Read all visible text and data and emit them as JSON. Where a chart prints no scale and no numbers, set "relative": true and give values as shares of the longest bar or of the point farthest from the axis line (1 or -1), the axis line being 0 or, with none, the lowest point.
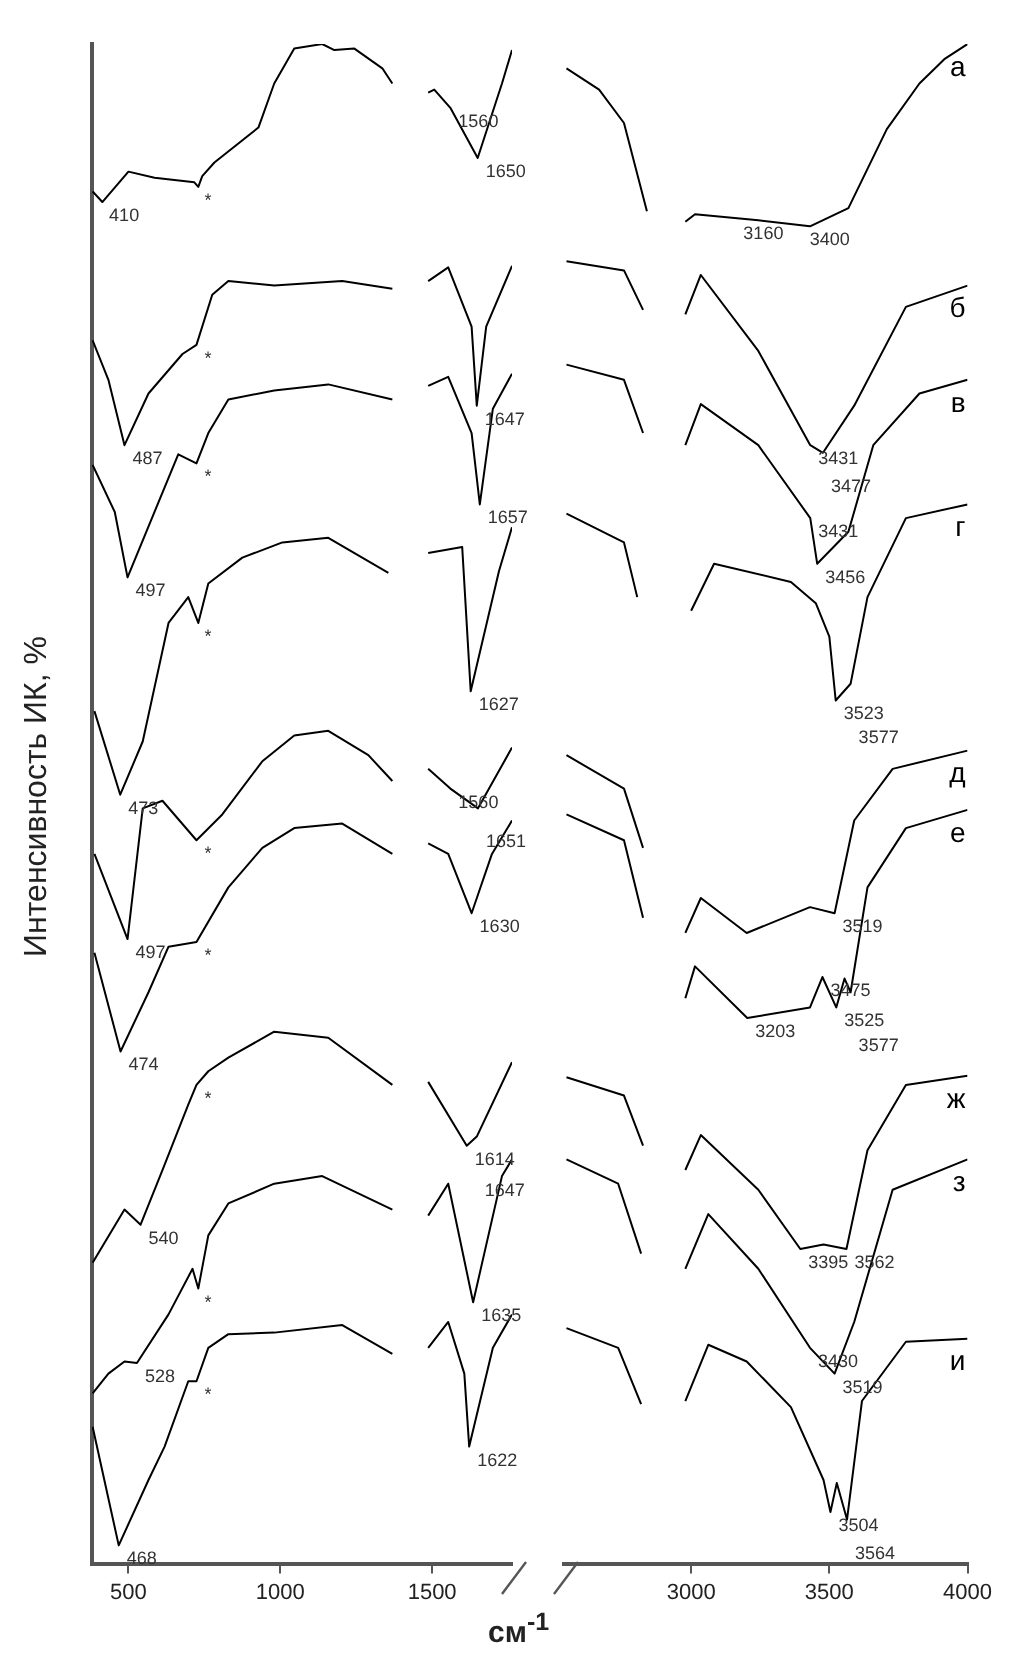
{
  "chart_data": [
    {
      "type": "line",
      "relative": true,
      "ylabel": "Интенсивность ИК, %",
      "xlim": [
        380,
        1763
      ],
      "xticks": [
        500,
        1000,
        1500
      ],
      "legend": false,
      "series": [
        {
          "color": "#000000",
          "x": [
            382,
            414,
            500,
            586,
            717,
            730,
            743,
            783,
            928,
            980,
            1046,
            1138,
            1178,
            1244,
            1336,
            1369,
            1430,
            1487,
            1507,
            1560,
            1650,
            1730,
            1763
          ],
          "values": [
            0.903,
            0.896,
            0.916,
            0.912,
            0.909,
            0.906,
            0.913,
            0.922,
            0.945,
            0.974,
            0.997,
            1.0,
            0.996,
            0.997,
            0.984,
            0.974,
            null,
            0.968,
            0.97,
            0.958,
            0.925,
            0.974,
            0.996
          ]
        },
        {
          "color": "#000000",
          "x": [
            382,
            434,
            487,
            566,
            678,
            724,
            776,
            829,
            980,
            1204,
            1369,
            1430,
            1487,
            1553,
            1630,
            1647,
            1678,
            1763
          ],
          "values": [
            0.805,
            0.779,
            0.736,
            0.77,
            0.796,
            0.802,
            0.835,
            0.844,
            0.841,
            0.844,
            0.839,
            null,
            0.844,
            0.853,
            0.814,
            0.762,
            0.814,
            0.854
          ]
        },
        {
          "color": "#000000",
          "x": [
            382,
            455,
            497,
            664,
            724,
            763,
            829,
            980,
            1158,
            1369,
            1430,
            1487,
            1553,
            1630,
            1657,
            1700,
            1763
          ],
          "values": [
            0.723,
            0.692,
            0.649,
            0.73,
            0.724,
            0.744,
            0.766,
            0.772,
            0.776,
            0.766,
            null,
            0.775,
            0.781,
            0.744,
            0.697,
            0.76,
            0.783
          ]
        },
        {
          "color": "#000000",
          "x": [
            388,
            473,
            547,
            632,
            697,
            730,
            763,
            875,
            1007,
            1158,
            1356,
            1430,
            1487,
            1599,
            1627,
            1720,
            1763
          ],
          "values": [
            0.561,
            0.506,
            0.541,
            0.619,
            0.636,
            0.619,
            0.645,
            0.662,
            0.672,
            0.675,
            0.652,
            null,
            0.665,
            0.669,
            0.574,
            0.653,
            0.682
          ]
        },
        {
          "color": "#000000",
          "x": [
            388,
            497,
            547,
            612,
            724,
            809,
            941,
            1046,
            1158,
            1290,
            1369,
            1430,
            1487,
            1560,
            1651,
            1763
          ],
          "values": [
            0.467,
            0.411,
            0.497,
            0.502,
            0.476,
            0.493,
            0.528,
            0.545,
            0.548,
            0.532,
            0.515,
            null,
            0.523,
            0.51,
            0.497,
            0.537
          ]
        },
        {
          "color": "#000000",
          "x": [
            388,
            474,
            566,
            632,
            724,
            829,
            941,
            1046,
            1204,
            1369,
            1430,
            1487,
            1553,
            1630,
            1697,
            1763
          ],
          "values": [
            0.402,
            0.337,
            0.376,
            0.406,
            0.409,
            0.445,
            0.471,
            0.484,
            0.487,
            0.467,
            null,
            0.474,
            0.467,
            0.428,
            0.467,
            0.489
          ]
        },
        {
          "color": "#000000",
          "x": [
            382,
            487,
            540,
            612,
            697,
            724,
            763,
            829,
            980,
            1158,
            1369,
            1430,
            1487,
            1614,
            1647,
            1763
          ],
          "values": [
            0.198,
            0.233,
            0.223,
            0.259,
            0.302,
            0.315,
            0.324,
            0.333,
            0.35,
            0.346,
            0.315,
            null,
            0.317,
            0.275,
            0.281,
            0.33
          ]
        },
        {
          "color": "#000000",
          "x": [
            382,
            434,
            487,
            528,
            632,
            711,
            730,
            763,
            829,
            980,
            1138,
            1369,
            1430,
            1487,
            1553,
            1635,
            1730,
            1763
          ],
          "values": [
            0.112,
            0.125,
            0.133,
            0.132,
            0.164,
            0.194,
            0.181,
            0.216,
            0.237,
            0.25,
            0.255,
            0.233,
            null,
            0.229,
            0.25,
            0.172,
            0.255,
            0.266
          ]
        },
        {
          "color": "#000000",
          "x": [
            382,
            468,
            566,
            619,
            697,
            724,
            763,
            829,
            980,
            1204,
            1369,
            1430,
            1487,
            1553,
            1606,
            1622,
            1700,
            1763
          ],
          "values": [
            0.09,
            0.012,
            0.055,
            0.077,
            0.12,
            0.12,
            0.142,
            0.151,
            0.152,
            0.157,
            0.138,
            null,
            0.142,
            0.159,
            0.125,
            0.077,
            0.142,
            0.164
          ]
        }
      ],
      "annotations": [
        {
          "text": "410",
          "x": 410,
          "y": 0.896
        },
        {
          "text": "1560",
          "x": 1560,
          "y": 0.958
        },
        {
          "text": "1650",
          "x": 1650,
          "y": 0.925
        },
        {
          "text": "487",
          "x": 487,
          "y": 0.736
        },
        {
          "text": "1647",
          "x": 1647,
          "y": 0.762
        },
        {
          "text": "497",
          "x": 497,
          "y": 0.649
        },
        {
          "text": "1657",
          "x": 1657,
          "y": 0.697
        },
        {
          "text": "473",
          "x": 473,
          "y": 0.506
        },
        {
          "text": "1627",
          "x": 1627,
          "y": 0.574
        },
        {
          "text": "497",
          "x": 497,
          "y": 0.411
        },
        {
          "text": "1560",
          "x": 1560,
          "y": 0.51
        },
        {
          "text": "1651",
          "x": 1651,
          "y": 0.497
        },
        {
          "text": "474",
          "x": 474,
          "y": 0.337
        },
        {
          "text": "1630",
          "x": 1630,
          "y": 0.428
        },
        {
          "text": "540",
          "x": 540,
          "y": 0.223
        },
        {
          "text": "1614",
          "x": 1614,
          "y": 0.275
        },
        {
          "text": "1647",
          "x": 1647,
          "y": 0.281
        },
        {
          "text": "528",
          "x": 528,
          "y": 0.132
        },
        {
          "text": "1635",
          "x": 1635,
          "y": 0.172
        },
        {
          "text": "468",
          "x": 468,
          "y": 0.012
        },
        {
          "text": "1622",
          "x": 1622,
          "y": 0.077
        },
        {
          "text": "*",
          "x": 724,
          "y": 0.906
        },
        {
          "text": "*",
          "x": 724,
          "y": 0.802
        },
        {
          "text": "*",
          "x": 724,
          "y": 0.724
        },
        {
          "text": "*",
          "x": 724,
          "y": 0.619
        },
        {
          "text": "*",
          "x": 724,
          "y": 0.476
        },
        {
          "text": "*",
          "x": 724,
          "y": 0.409
        },
        {
          "text": "*",
          "x": 724,
          "y": 0.315
        },
        {
          "text": "*",
          "x": 724,
          "y": 0.181
        },
        {
          "text": "*",
          "x": 724,
          "y": 0.12
        }
      ]
    },
    {
      "type": "line",
      "relative": true,
      "xlabel": "см$^{-1}$",
      "xlim": [
        2540,
        4000
      ],
      "xticks": [
        3000,
        3500,
        4000
      ],
      "legend": false,
      "series": [
        {
          "name": "а",
          "color": "#000000",
          "x": [
            2549,
            2667,
            2757,
            2840,
            2900,
            2979,
            3014,
            3243,
            3430,
            3569,
            3708,
            3826,
            3916,
            4000
          ],
          "values": [
            0.984,
            0.97,
            0.948,
            0.89,
            null,
            0.883,
            0.888,
            0.884,
            0.88,
            0.892,
            0.944,
            0.974,
            0.99,
            1.0
          ]
        },
        {
          "name": "б",
          "color": "#000000",
          "x": [
            2549,
            2757,
            2826,
            2900,
            2979,
            3035,
            3243,
            3431,
            3477,
            3590,
            3777,
            4000
          ],
          "values": [
            0.857,
            0.851,
            0.825,
            null,
            0.822,
            0.848,
            0.798,
            0.736,
            0.731,
            0.762,
            0.827,
            0.841
          ]
        },
        {
          "name": "в",
          "color": "#000000",
          "x": [
            2549,
            2757,
            2826,
            2900,
            2979,
            3035,
            3243,
            3431,
            3456,
            3569,
            3659,
            3826,
            4000
          ],
          "values": [
            0.789,
            0.779,
            0.744,
            null,
            0.736,
            0.763,
            0.736,
            0.688,
            0.658,
            0.679,
            0.736,
            0.77,
            0.779
          ]
        },
        {
          "name": "г",
          "color": "#000000",
          "x": [
            2549,
            2757,
            2805,
            2900,
            3000,
            3083,
            3361,
            3451,
            3500,
            3523,
            3577,
            3638,
            3777,
            4000
          ],
          "values": [
            0.691,
            0.672,
            0.636,
            null,
            0.627,
            0.658,
            0.646,
            0.632,
            0.61,
            0.568,
            0.579,
            0.636,
            0.688,
            0.697
          ]
        },
        {
          "name": "д",
          "color": "#000000",
          "x": [
            2549,
            2757,
            2826,
            2900,
            2979,
            3035,
            3201,
            3430,
            3519,
            3590,
            3729,
            4000
          ],
          "values": [
            0.532,
            0.51,
            0.471,
            null,
            0.415,
            0.438,
            0.415,
            0.432,
            0.428,
            0.489,
            0.523,
            0.535
          ]
        },
        {
          "name": "е",
          "color": "#000000",
          "x": [
            2549,
            2757,
            2826,
            2900,
            2979,
            3014,
            3203,
            3430,
            3475,
            3525,
            3555,
            3577,
            3638,
            3777,
            4000
          ],
          "values": [
            0.493,
            0.476,
            0.425,
            null,
            0.372,
            0.393,
            0.359,
            0.366,
            0.386,
            0.366,
            0.385,
            0.376,
            0.445,
            0.484,
            0.496
          ]
        },
        {
          "name": "ж",
          "color": "#000000",
          "x": [
            2549,
            2757,
            2826,
            2900,
            2979,
            3035,
            3243,
            3395,
            3479,
            3562,
            3638,
            3777,
            4000
          ],
          "values": [
            0.32,
            0.308,
            0.275,
            null,
            0.259,
            0.282,
            0.246,
            0.207,
            0.21,
            0.207,
            0.272,
            0.315,
            0.321
          ]
        },
        {
          "name": "з",
          "color": "#000000",
          "x": [
            2549,
            2736,
            2819,
            2900,
            2979,
            3062,
            3243,
            3430,
            3519,
            3590,
            3729,
            4000
          ],
          "values": [
            0.266,
            0.25,
            0.204,
            null,
            0.194,
            0.23,
            0.194,
            0.142,
            0.125,
            0.159,
            0.246,
            0.266
          ]
        },
        {
          "name": "и",
          "color": "#000000",
          "x": [
            2549,
            2736,
            2819,
            2900,
            2979,
            3062,
            3201,
            3361,
            3479,
            3504,
            3527,
            3564,
            3618,
            3777,
            4000
          ],
          "values": [
            0.155,
            0.142,
            0.105,
            null,
            0.107,
            0.144,
            0.133,
            0.103,
            0.055,
            0.034,
            0.053,
            0.029,
            0.107,
            0.146,
            0.148
          ]
        }
      ],
      "annotations": [
        {
          "text": "3160",
          "x": 3160,
          "y": 0.884
        },
        {
          "text": "3400",
          "x": 3400,
          "y": 0.88
        },
        {
          "text": "3431",
          "x": 3431,
          "y": 0.736
        },
        {
          "text": "3477",
          "x": 3477,
          "y": 0.731
        },
        {
          "text": "3431",
          "x": 3431,
          "y": 0.688
        },
        {
          "text": "3456",
          "x": 3456,
          "y": 0.658
        },
        {
          "text": "3523",
          "x": 3523,
          "y": 0.568
        },
        {
          "text": "3577",
          "x": 3577,
          "y": 0.579
        },
        {
          "text": "3519",
          "x": 3519,
          "y": 0.428
        },
        {
          "text": "3203",
          "x": 3203,
          "y": 0.359
        },
        {
          "text": "3475",
          "x": 3475,
          "y": 0.386
        },
        {
          "text": "3525",
          "x": 3525,
          "y": 0.366
        },
        {
          "text": "3577",
          "x": 3577,
          "y": 0.376
        },
        {
          "text": "3395",
          "x": 3395,
          "y": 0.207
        },
        {
          "text": "3562",
          "x": 3562,
          "y": 0.207
        },
        {
          "text": "3430",
          "x": 3430,
          "y": 0.142
        },
        {
          "text": "3519",
          "x": 3519,
          "y": 0.125
        },
        {
          "text": "3504",
          "x": 3504,
          "y": 0.034
        },
        {
          "text": "3564",
          "x": 3564,
          "y": 0.029
        }
      ]
    }
  ]
}
